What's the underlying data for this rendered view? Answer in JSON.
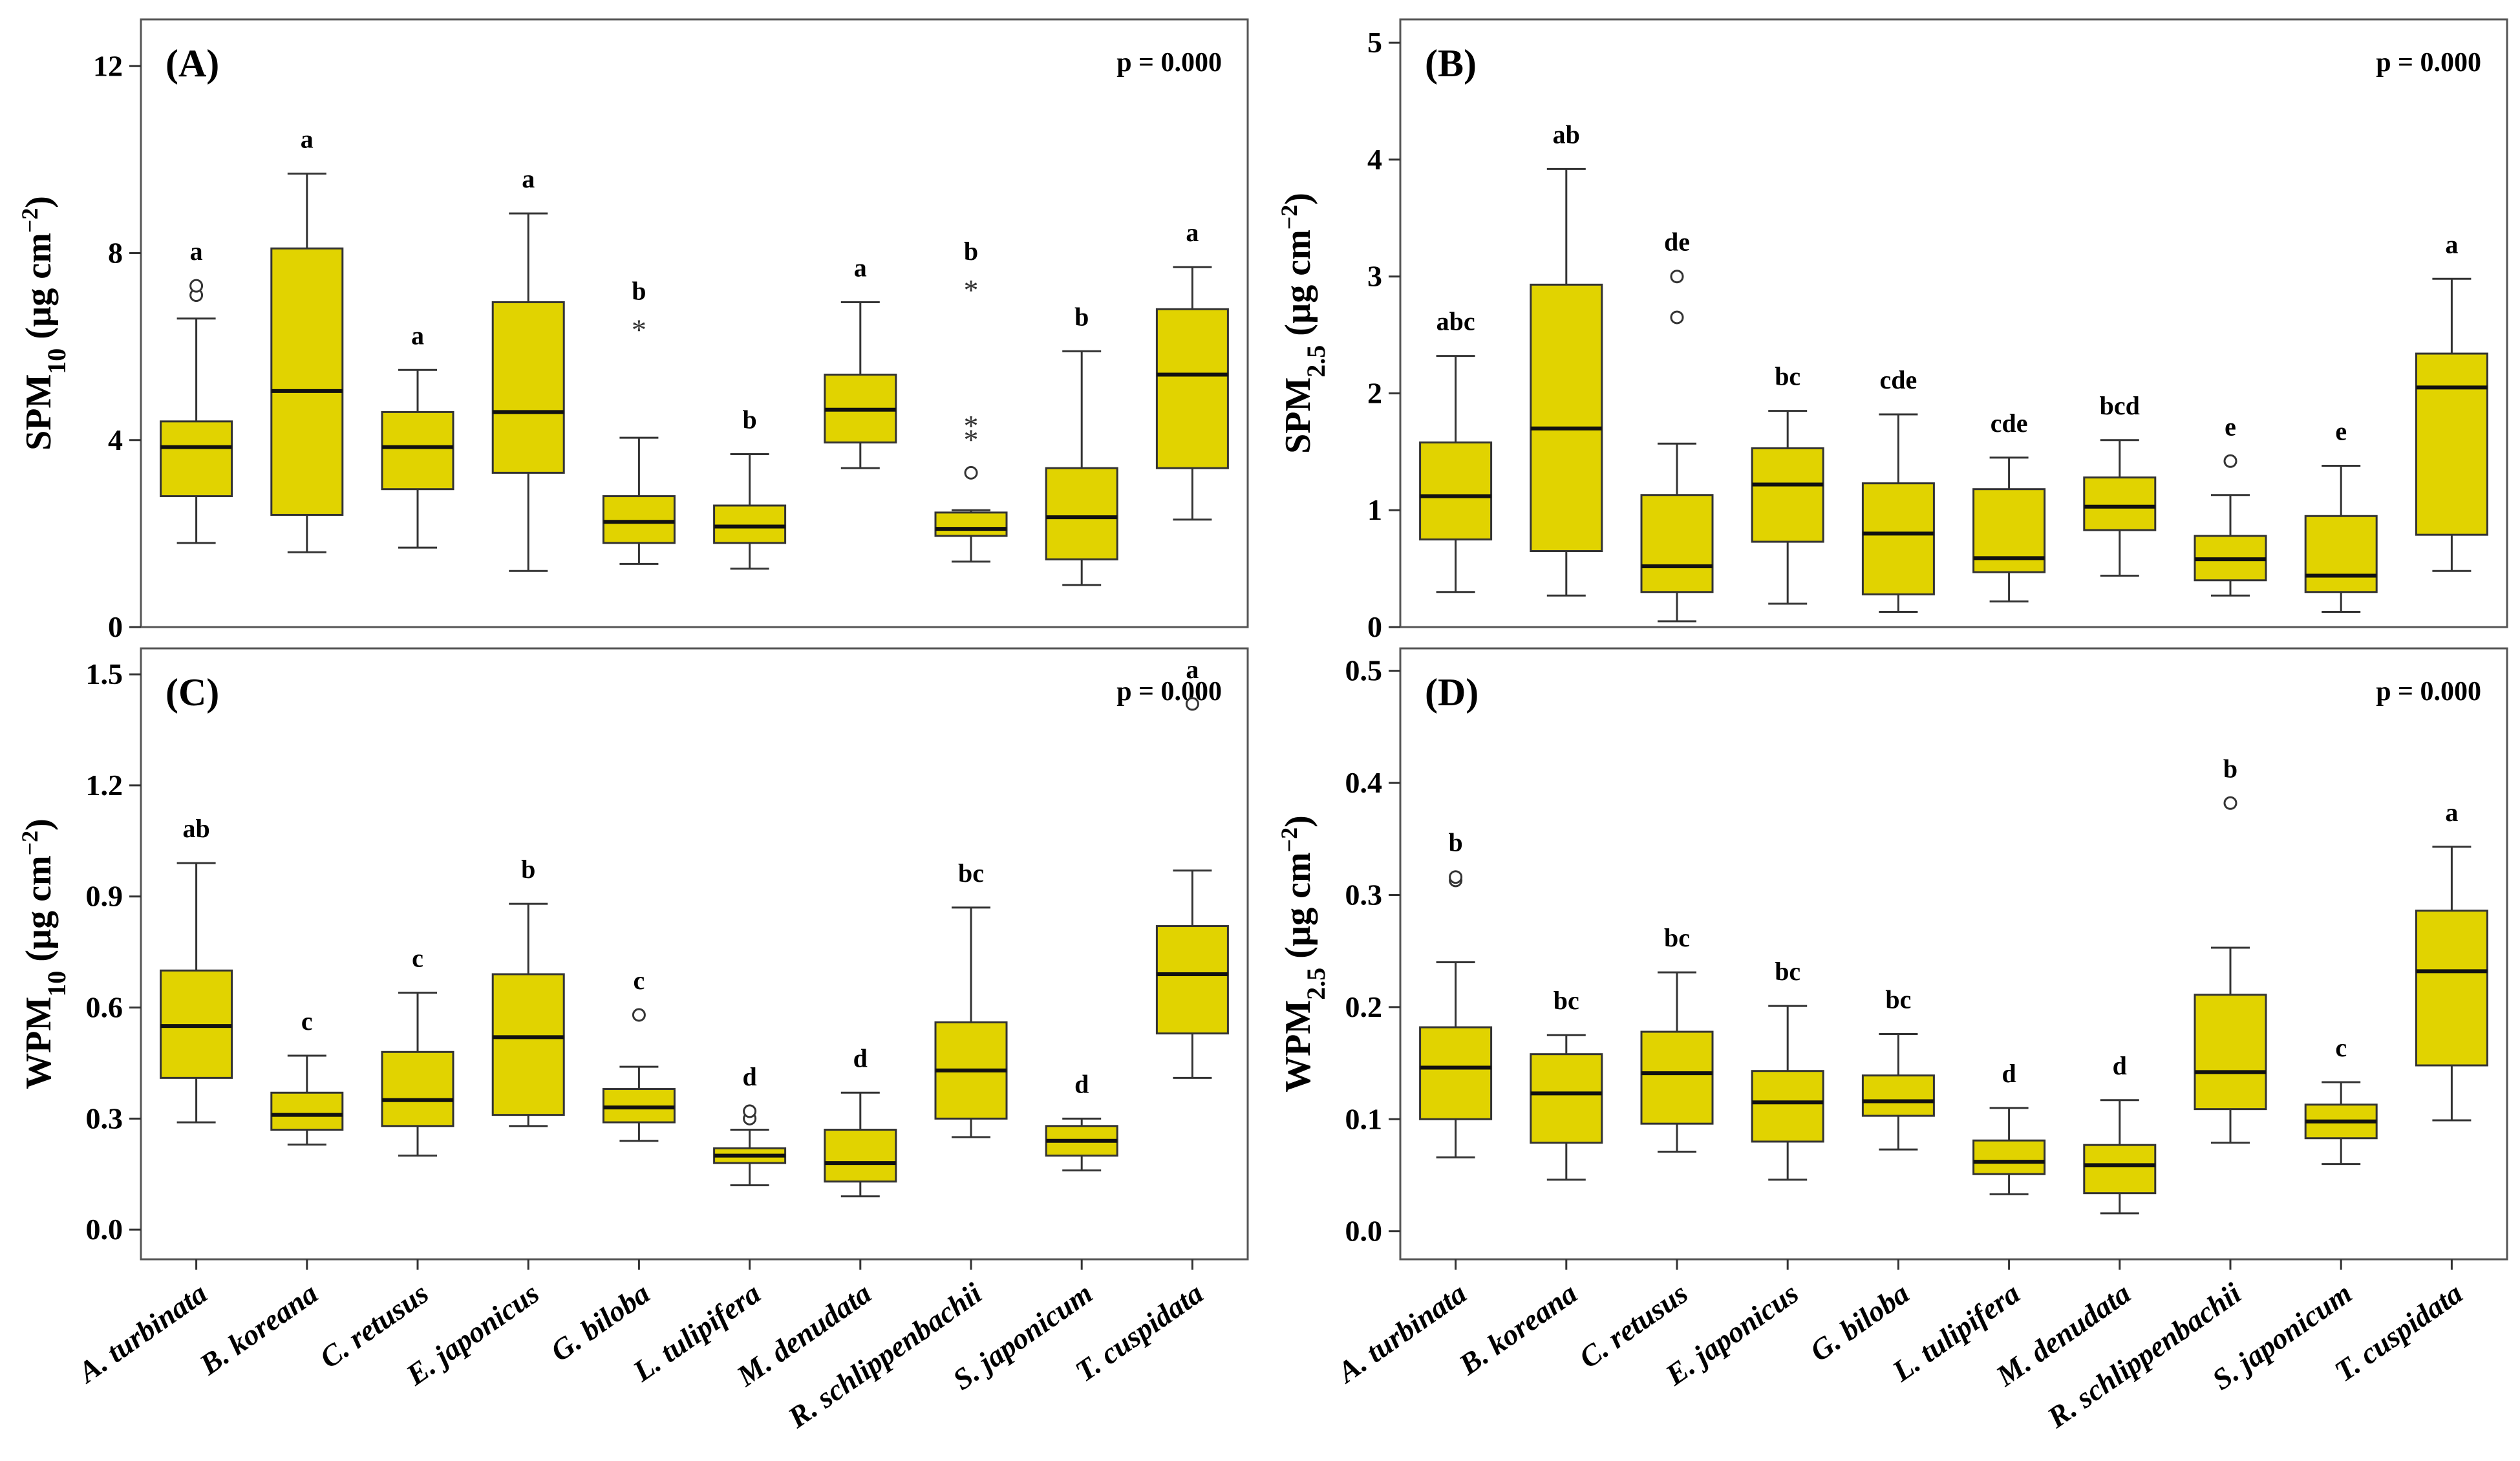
{
  "figure_colors": {
    "box_fill": "#e1d300",
    "stroke": "#333333"
  },
  "chart_data": [
    {
      "type": "box",
      "panel_label": "(A)",
      "p_text": "p = 0.000",
      "ylabel_main": "SPM",
      "ylabel_sub": "10",
      "ylabel_unit": " (µg cm",
      "ylabel_sup": "−2",
      "ylabel_close": ")",
      "ylim": [
        0,
        13
      ],
      "yticks": [
        0,
        4,
        8,
        12
      ],
      "yticklabels": [
        "0",
        "4",
        "8",
        "12"
      ],
      "categories": [
        "A. turbinata",
        "B. koreana",
        "C. retusus",
        "E. japonicus",
        "G. biloba",
        "L. tulipifera",
        "M. denudata",
        "R. schlippenbachii",
        "S. japonicum",
        "T. cuspidata"
      ],
      "boxes": [
        {
          "whisker_low": 1.8,
          "q1": 2.8,
          "median": 3.85,
          "q3": 4.4,
          "whisker_high": 6.6,
          "outliers": [
            {
              "value": 7.1,
              "marker": "o"
            },
            {
              "value": 7.3,
              "marker": "o"
            }
          ],
          "letter": "a"
        },
        {
          "whisker_low": 1.6,
          "q1": 2.4,
          "median": 5.05,
          "q3": 8.1,
          "whisker_high": 9.7,
          "outliers": [],
          "letter": "a"
        },
        {
          "whisker_low": 1.7,
          "q1": 2.95,
          "median": 3.85,
          "q3": 4.6,
          "whisker_high": 5.5,
          "outliers": [],
          "letter": "a"
        },
        {
          "whisker_low": 1.2,
          "q1": 3.3,
          "median": 4.6,
          "q3": 6.95,
          "whisker_high": 8.85,
          "outliers": [],
          "letter": "a"
        },
        {
          "whisker_low": 1.35,
          "q1": 1.8,
          "median": 2.25,
          "q3": 2.8,
          "whisker_high": 4.05,
          "outliers": [
            {
              "value": 6.45,
              "marker": "*"
            }
          ],
          "letter": "b"
        },
        {
          "whisker_low": 1.25,
          "q1": 1.8,
          "median": 2.15,
          "q3": 2.6,
          "whisker_high": 3.7,
          "outliers": [],
          "letter": "b"
        },
        {
          "whisker_low": 3.4,
          "q1": 3.95,
          "median": 4.65,
          "q3": 5.4,
          "whisker_high": 6.95,
          "outliers": [],
          "letter": "a"
        },
        {
          "whisker_low": 1.4,
          "q1": 1.95,
          "median": 2.1,
          "q3": 2.45,
          "whisker_high": 2.5,
          "outliers": [
            {
              "value": 3.3,
              "marker": "o"
            },
            {
              "value": 4.1,
              "marker": "*"
            },
            {
              "value": 4.4,
              "marker": "*"
            },
            {
              "value": 7.3,
              "marker": "*"
            }
          ],
          "letter": "b"
        },
        {
          "whisker_low": 0.9,
          "q1": 1.45,
          "median": 2.35,
          "q3": 3.4,
          "whisker_high": 5.9,
          "outliers": [],
          "letter": "b"
        },
        {
          "whisker_low": 2.3,
          "q1": 3.4,
          "median": 5.4,
          "q3": 6.8,
          "whisker_high": 7.7,
          "outliers": [],
          "letter": "a"
        }
      ]
    },
    {
      "type": "box",
      "panel_label": "(B)",
      "p_text": "p = 0.000",
      "ylabel_main": "SPM",
      "ylabel_sub": "2.5",
      "ylabel_unit": " (µg cm",
      "ylabel_sup": "−2",
      "ylabel_close": ")",
      "ylim": [
        0,
        5.2
      ],
      "yticks": [
        0,
        1,
        2,
        3,
        4,
        5
      ],
      "yticklabels": [
        "0",
        "1",
        "2",
        "3",
        "4",
        "5"
      ],
      "categories": [
        "A. turbinata",
        "B. koreana",
        "C. retusus",
        "E. japonicus",
        "G. biloba",
        "L. tulipifera",
        "M. denudata",
        "R. schlippenbachii",
        "S. japonicum",
        "T. cuspidata"
      ],
      "boxes": [
        {
          "whisker_low": 0.3,
          "q1": 0.75,
          "median": 1.12,
          "q3": 1.58,
          "whisker_high": 2.32,
          "outliers": [],
          "letter": "abc"
        },
        {
          "whisker_low": 0.27,
          "q1": 0.65,
          "median": 1.7,
          "q3": 2.93,
          "whisker_high": 3.92,
          "outliers": [],
          "letter": "ab"
        },
        {
          "whisker_low": 0.05,
          "q1": 0.3,
          "median": 0.52,
          "q3": 1.13,
          "whisker_high": 1.57,
          "outliers": [
            {
              "value": 2.65,
              "marker": "o"
            },
            {
              "value": 3.0,
              "marker": "o"
            }
          ],
          "letter": "de"
        },
        {
          "whisker_low": 0.2,
          "q1": 0.73,
          "median": 1.22,
          "q3": 1.53,
          "whisker_high": 1.85,
          "outliers": [],
          "letter": "bc"
        },
        {
          "whisker_low": 0.13,
          "q1": 0.28,
          "median": 0.8,
          "q3": 1.23,
          "whisker_high": 1.82,
          "outliers": [],
          "letter": "cde"
        },
        {
          "whisker_low": 0.22,
          "q1": 0.47,
          "median": 0.59,
          "q3": 1.18,
          "whisker_high": 1.45,
          "outliers": [],
          "letter": "cde"
        },
        {
          "whisker_low": 0.44,
          "q1": 0.83,
          "median": 1.03,
          "q3": 1.28,
          "whisker_high": 1.6,
          "outliers": [],
          "letter": "bcd"
        },
        {
          "whisker_low": 0.27,
          "q1": 0.4,
          "median": 0.58,
          "q3": 0.78,
          "whisker_high": 1.13,
          "outliers": [
            {
              "value": 1.42,
              "marker": "o"
            }
          ],
          "letter": "e"
        },
        {
          "whisker_low": 0.13,
          "q1": 0.3,
          "median": 0.44,
          "q3": 0.95,
          "whisker_high": 1.38,
          "outliers": [],
          "letter": "e"
        },
        {
          "whisker_low": 0.48,
          "q1": 0.79,
          "median": 2.05,
          "q3": 2.34,
          "whisker_high": 2.98,
          "outliers": [],
          "letter": "a"
        }
      ]
    },
    {
      "type": "box",
      "panel_label": "(C)",
      "p_text": "p = 0.000",
      "ylabel_main": "WPM",
      "ylabel_sub": "10",
      "ylabel_unit": " (µg cm",
      "ylabel_sup": "−2",
      "ylabel_close": ")",
      "ylim": [
        -0.08,
        1.57
      ],
      "yticks": [
        0.0,
        0.3,
        0.6,
        0.9,
        1.2,
        1.5
      ],
      "yticklabels": [
        "0.0",
        "0.3",
        "0.6",
        "0.9",
        "1.2",
        "1.5"
      ],
      "categories": [
        "A. turbinata",
        "B. koreana",
        "C. retusus",
        "E. japonicus",
        "G. biloba",
        "L. tulipifera",
        "M. denudata",
        "R. schlippenbachii",
        "S. japonicum",
        "T. cuspidata"
      ],
      "boxes": [
        {
          "whisker_low": 0.29,
          "q1": 0.41,
          "median": 0.55,
          "q3": 0.7,
          "whisker_high": 0.99,
          "outliers": [],
          "letter": "ab"
        },
        {
          "whisker_low": 0.23,
          "q1": 0.27,
          "median": 0.31,
          "q3": 0.37,
          "whisker_high": 0.47,
          "outliers": [],
          "letter": "c"
        },
        {
          "whisker_low": 0.2,
          "q1": 0.28,
          "median": 0.35,
          "q3": 0.48,
          "whisker_high": 0.64,
          "outliers": [],
          "letter": "c"
        },
        {
          "whisker_low": 0.28,
          "q1": 0.31,
          "median": 0.52,
          "q3": 0.69,
          "whisker_high": 0.88,
          "outliers": [],
          "letter": "b"
        },
        {
          "whisker_low": 0.24,
          "q1": 0.29,
          "median": 0.33,
          "q3": 0.38,
          "whisker_high": 0.44,
          "outliers": [
            {
              "value": 0.58,
              "marker": "o"
            }
          ],
          "letter": "c"
        },
        {
          "whisker_low": 0.12,
          "q1": 0.18,
          "median": 0.2,
          "q3": 0.22,
          "whisker_high": 0.27,
          "outliers": [
            {
              "value": 0.3,
              "marker": "o"
            },
            {
              "value": 0.32,
              "marker": "o"
            }
          ],
          "letter": "d"
        },
        {
          "whisker_low": 0.09,
          "q1": 0.13,
          "median": 0.18,
          "q3": 0.27,
          "whisker_high": 0.37,
          "outliers": [],
          "letter": "d"
        },
        {
          "whisker_low": 0.25,
          "q1": 0.3,
          "median": 0.43,
          "q3": 0.56,
          "whisker_high": 0.87,
          "outliers": [],
          "letter": "bc"
        },
        {
          "whisker_low": 0.16,
          "q1": 0.2,
          "median": 0.24,
          "q3": 0.28,
          "whisker_high": 0.3,
          "outliers": [],
          "letter": "d"
        },
        {
          "whisker_low": 0.41,
          "q1": 0.53,
          "median": 0.69,
          "q3": 0.82,
          "whisker_high": 0.97,
          "outliers": [
            {
              "value": 1.42,
              "marker": "o"
            }
          ],
          "letter": "a"
        }
      ]
    },
    {
      "type": "box",
      "panel_label": "(D)",
      "p_text": "p = 0.000",
      "ylabel_main": "WPM",
      "ylabel_sub": "2.5",
      "ylabel_unit": " (µg cm",
      "ylabel_sup": "−2",
      "ylabel_close": ")",
      "ylim": [
        -0.025,
        0.52
      ],
      "yticks": [
        0.0,
        0.1,
        0.2,
        0.3,
        0.4,
        0.5
      ],
      "yticklabels": [
        "0.0",
        "0.1",
        "0.2",
        "0.3",
        "0.4",
        "0.5"
      ],
      "categories": [
        "A. turbinata",
        "B. koreana",
        "C. retusus",
        "E. japonicus",
        "G. biloba",
        "L. tulipifera",
        "M. denudata",
        "R. schlippenbachii",
        "S. japonicum",
        "T. cuspidata"
      ],
      "boxes": [
        {
          "whisker_low": 0.066,
          "q1": 0.1,
          "median": 0.146,
          "q3": 0.182,
          "whisker_high": 0.24,
          "outliers": [
            {
              "value": 0.313,
              "marker": "o"
            },
            {
              "value": 0.316,
              "marker": "o"
            }
          ],
          "letter": "b"
        },
        {
          "whisker_low": 0.046,
          "q1": 0.079,
          "median": 0.123,
          "q3": 0.158,
          "whisker_high": 0.175,
          "outliers": [],
          "letter": "bc"
        },
        {
          "whisker_low": 0.071,
          "q1": 0.096,
          "median": 0.141,
          "q3": 0.178,
          "whisker_high": 0.231,
          "outliers": [],
          "letter": "bc"
        },
        {
          "whisker_low": 0.046,
          "q1": 0.08,
          "median": 0.115,
          "q3": 0.143,
          "whisker_high": 0.201,
          "outliers": [],
          "letter": "bc"
        },
        {
          "whisker_low": 0.073,
          "q1": 0.103,
          "median": 0.116,
          "q3": 0.139,
          "whisker_high": 0.176,
          "outliers": [],
          "letter": "bc"
        },
        {
          "whisker_low": 0.033,
          "q1": 0.051,
          "median": 0.062,
          "q3": 0.081,
          "whisker_high": 0.11,
          "outliers": [],
          "letter": "d"
        },
        {
          "whisker_low": 0.016,
          "q1": 0.034,
          "median": 0.059,
          "q3": 0.077,
          "whisker_high": 0.117,
          "outliers": [],
          "letter": "d"
        },
        {
          "whisker_low": 0.079,
          "q1": 0.109,
          "median": 0.142,
          "q3": 0.211,
          "whisker_high": 0.253,
          "outliers": [
            {
              "value": 0.382,
              "marker": "o"
            }
          ],
          "letter": "b"
        },
        {
          "whisker_low": 0.06,
          "q1": 0.083,
          "median": 0.098,
          "q3": 0.113,
          "whisker_high": 0.133,
          "outliers": [],
          "letter": "c"
        },
        {
          "whisker_low": 0.099,
          "q1": 0.148,
          "median": 0.232,
          "q3": 0.286,
          "whisker_high": 0.343,
          "outliers": [],
          "letter": "a"
        }
      ]
    }
  ]
}
